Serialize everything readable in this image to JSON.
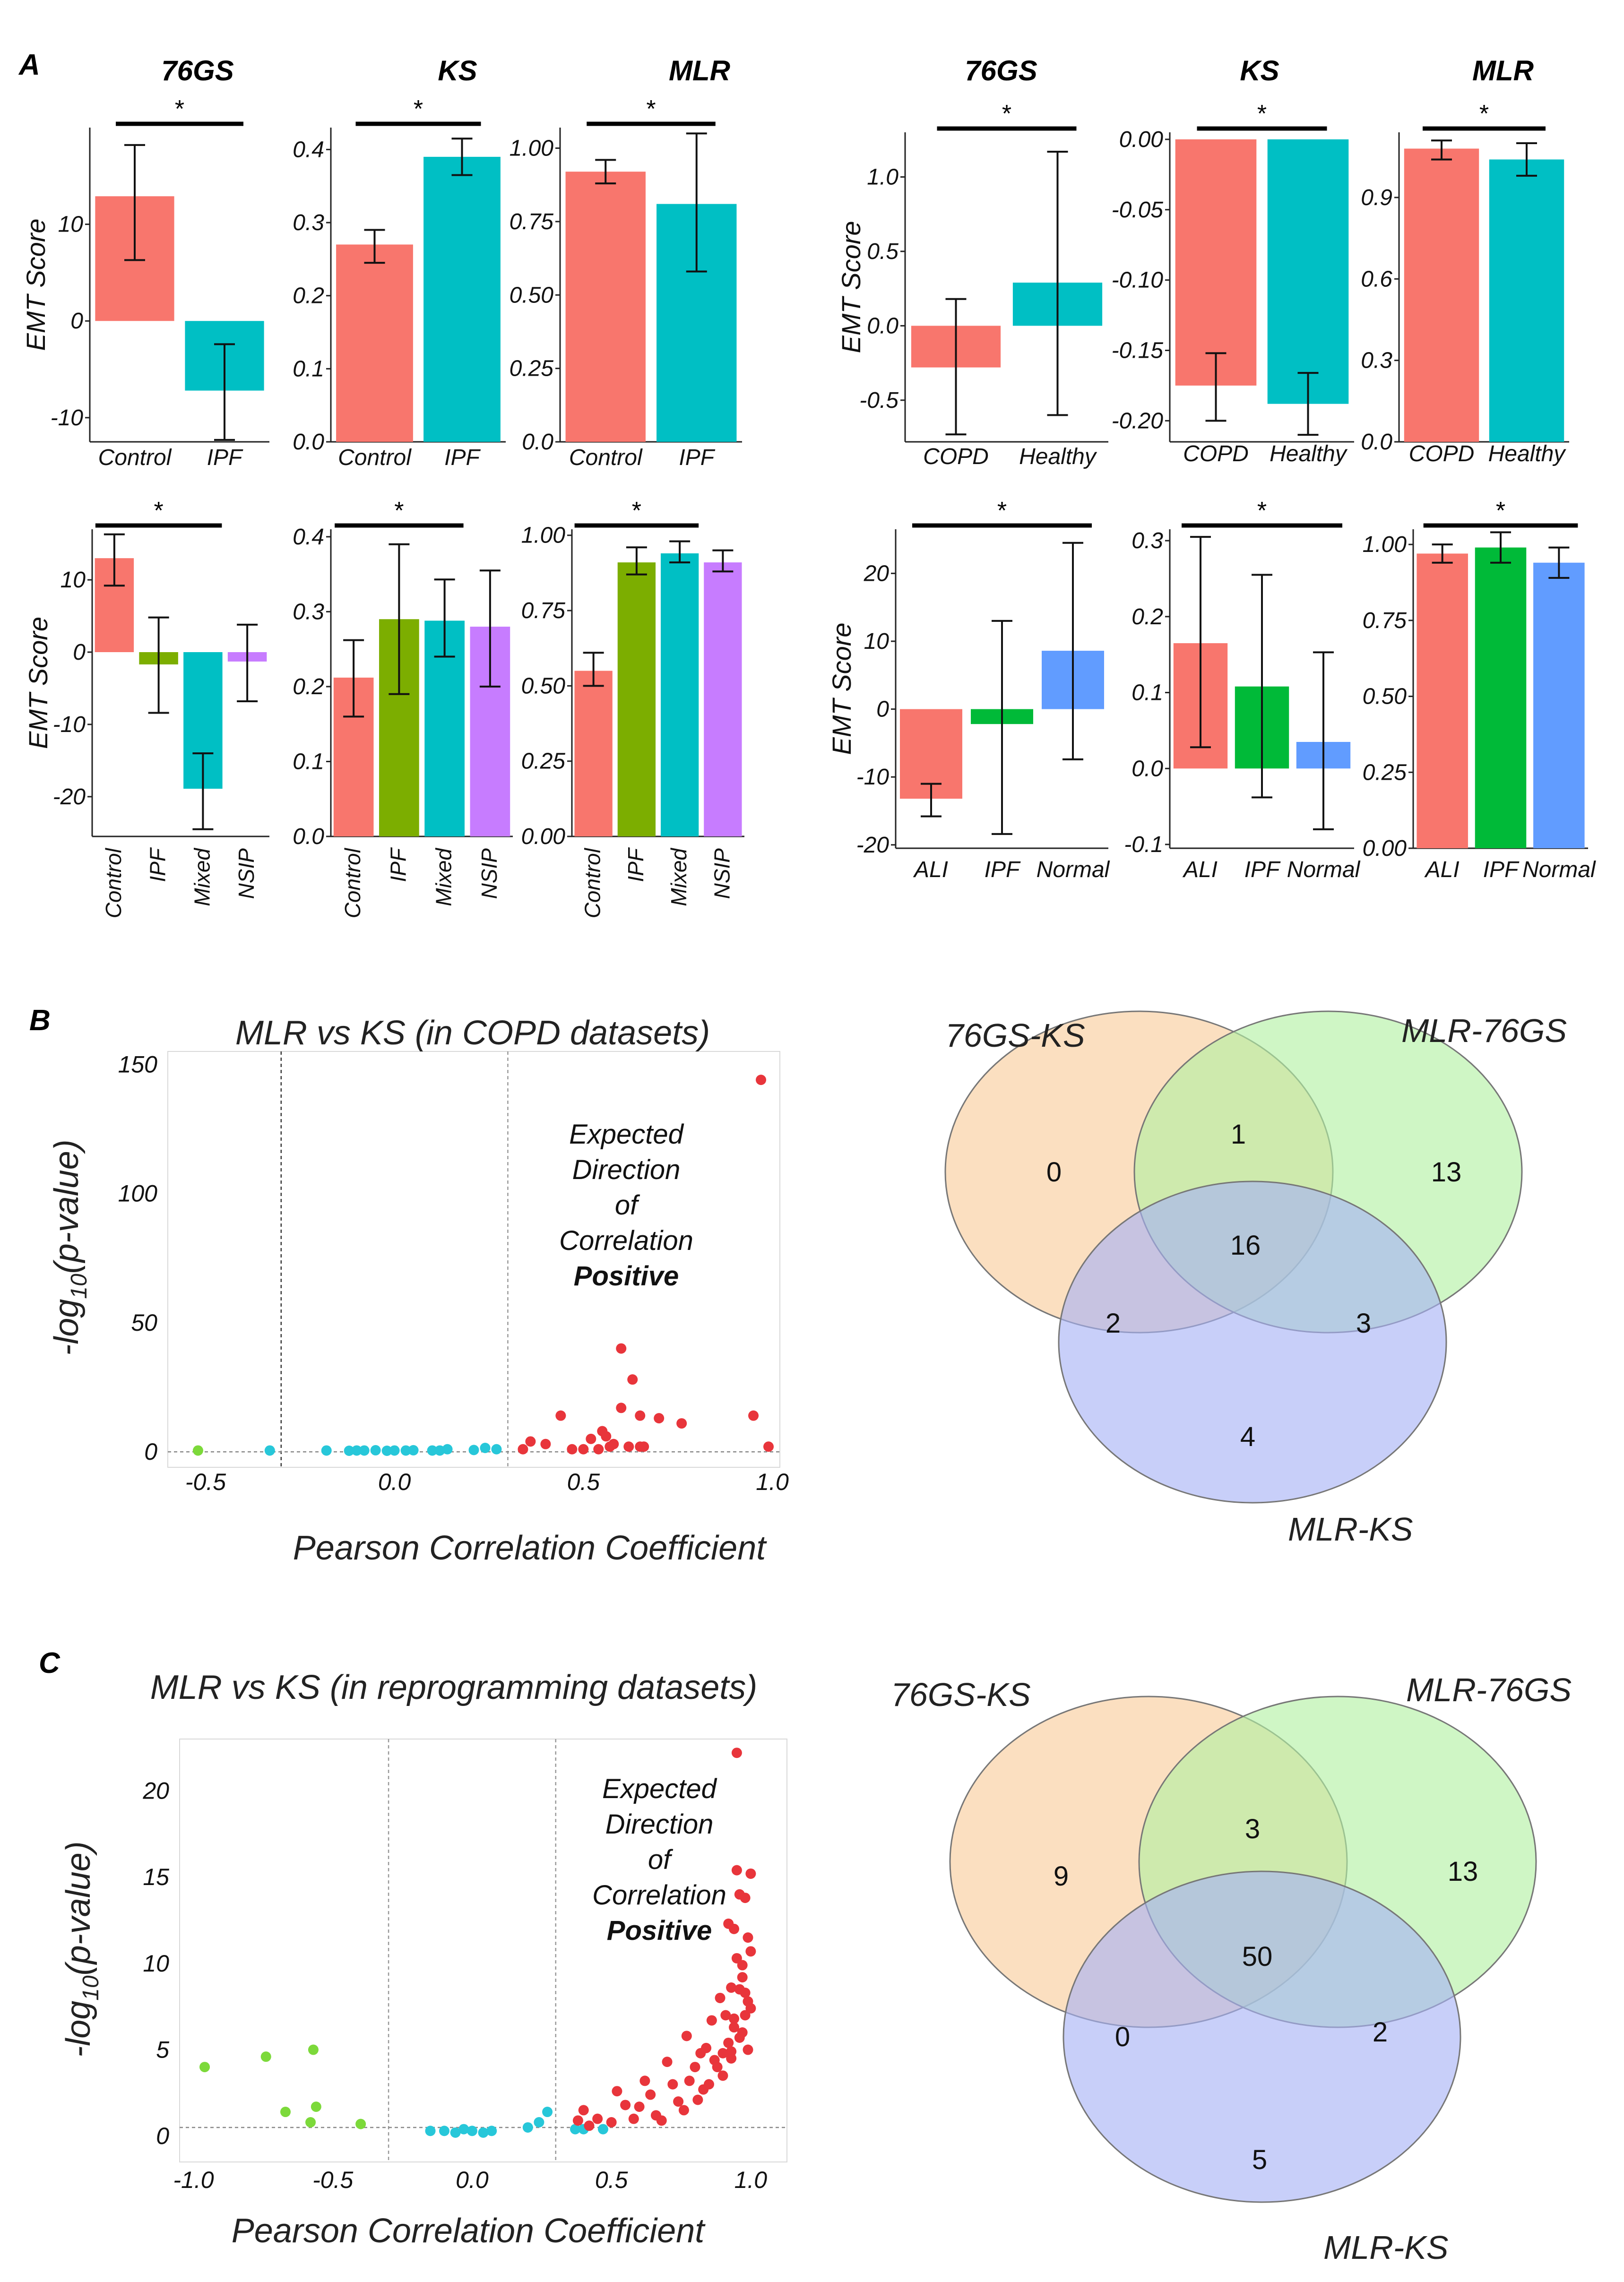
{
  "panel_labels": {
    "a": "A",
    "b": "B",
    "c": "C"
  },
  "chart_data": [
    {
      "id": "a1",
      "type": "bar",
      "title": "76GS",
      "ylabel": "EMT Score",
      "categories": [
        "Control",
        "IPF"
      ],
      "values": [
        12.9,
        -7.2
      ],
      "err_low": [
        6.3,
        -12.3
      ],
      "err_high": [
        18.2,
        -2.4
      ],
      "colors": [
        "#f8766d",
        "#00bfc4"
      ],
      "ylim": [
        -12.5,
        20
      ],
      "yticks": [
        -10,
        0,
        10
      ],
      "ytick_labels": [
        "-10",
        "0",
        "10"
      ],
      "significance": "*",
      "sig_span": [
        0,
        1
      ]
    },
    {
      "id": "a2",
      "type": "bar",
      "title": "KS",
      "ylabel": "",
      "categories": [
        "Control",
        "IPF"
      ],
      "values": [
        0.27,
        0.39
      ],
      "err_low": [
        0.245,
        0.365
      ],
      "err_high": [
        0.29,
        0.415
      ],
      "colors": [
        "#f8766d",
        "#00bfc4"
      ],
      "ylim": [
        0,
        0.43
      ],
      "yticks": [
        0,
        0.1,
        0.2,
        0.3,
        0.4
      ],
      "ytick_labels": [
        "0.0",
        "0.1",
        "0.2",
        "0.3",
        "0.4"
      ],
      "significance": "*",
      "sig_span": [
        0,
        1
      ]
    },
    {
      "id": "a3",
      "type": "bar",
      "title": "MLR",
      "ylabel": "",
      "categories": [
        "Control",
        "IPF"
      ],
      "values": [
        0.92,
        0.81
      ],
      "err_low": [
        0.88,
        0.58
      ],
      "err_high": [
        0.96,
        1.05
      ],
      "colors": [
        "#f8766d",
        "#00bfc4"
      ],
      "ylim": [
        0,
        1.07
      ],
      "yticks": [
        0,
        0.25,
        0.5,
        0.75,
        1.0
      ],
      "ytick_labels": [
        "0.0",
        "0.25",
        "0.50",
        "0.75",
        "1.00"
      ],
      "significance": "*",
      "sig_span": [
        0,
        1
      ]
    },
    {
      "id": "a4",
      "type": "bar",
      "title": "76GS",
      "ylabel": "EMT Score",
      "categories": [
        "COPD",
        "Healthy"
      ],
      "values": [
        -0.28,
        0.29
      ],
      "err_low": [
        -0.73,
        -0.6
      ],
      "err_high": [
        0.18,
        1.17
      ],
      "colors": [
        "#f8766d",
        "#00bfc4"
      ],
      "ylim": [
        -0.78,
        1.3
      ],
      "yticks": [
        -0.5,
        0,
        0.5,
        1.0
      ],
      "ytick_labels": [
        "-0.5",
        "0.0",
        "0.5",
        "1.0"
      ],
      "significance": "*",
      "sig_span": [
        0,
        1
      ]
    },
    {
      "id": "a5",
      "type": "bar",
      "title": "KS",
      "ylabel": "",
      "categories": [
        "COPD",
        "Healthy"
      ],
      "values": [
        -0.175,
        -0.188
      ],
      "err_low": [
        -0.2,
        -0.21
      ],
      "err_high": [
        -0.152,
        -0.166
      ],
      "colors": [
        "#f8766d",
        "#00bfc4"
      ],
      "ylim": [
        -0.215,
        0.005
      ],
      "yticks": [
        -0.2,
        -0.15,
        -0.1,
        -0.05,
        0
      ],
      "ytick_labels": [
        "-0.20",
        "-0.15",
        "-0.10",
        "-0.05",
        "0.00"
      ],
      "significance": "*",
      "sig_span": [
        0,
        1
      ]
    },
    {
      "id": "a6",
      "type": "bar",
      "title": "MLR",
      "ylabel": "",
      "categories": [
        "COPD",
        "Healthy"
      ],
      "values": [
        1.08,
        1.04
      ],
      "err_low": [
        1.04,
        0.98
      ],
      "err_high": [
        1.11,
        1.1
      ],
      "colors": [
        "#f8766d",
        "#00bfc4"
      ],
      "ylim": [
        0,
        1.14
      ],
      "yticks": [
        0,
        0.3,
        0.6,
        0.9
      ],
      "ytick_labels": [
        "0.0",
        "0.3",
        "0.6",
        "0.9"
      ],
      "significance": "*",
      "sig_span": [
        0,
        1
      ]
    },
    {
      "id": "a7",
      "type": "bar",
      "title": "",
      "ylabel": "EMT Score",
      "categories": [
        "Control",
        "IPF",
        "Mixed",
        "NSIP"
      ],
      "values": [
        13.0,
        -1.7,
        -18.9,
        -1.3
      ],
      "err_low": [
        9.2,
        -8.4,
        -24.5,
        -6.8
      ],
      "err_high": [
        16.3,
        4.8,
        -14.0,
        3.8
      ],
      "colors": [
        "#f8766d",
        "#7cae00",
        "#00bfc4",
        "#c77cff"
      ],
      "ylim": [
        -25.5,
        17
      ],
      "yticks": [
        -20,
        -10,
        0,
        10
      ],
      "ytick_labels": [
        "-20",
        "-10",
        "0",
        "10"
      ],
      "significance": "*",
      "sig_span": [
        0,
        2
      ]
    },
    {
      "id": "a8",
      "type": "bar",
      "title": "",
      "ylabel": "",
      "categories": [
        "Control",
        "IPF",
        "Mixed",
        "NSIP"
      ],
      "values": [
        0.212,
        0.29,
        0.288,
        0.28
      ],
      "err_low": [
        0.16,
        0.19,
        0.24,
        0.2
      ],
      "err_high": [
        0.262,
        0.39,
        0.343,
        0.355
      ],
      "colors": [
        "#f8766d",
        "#7cae00",
        "#00bfc4",
        "#c77cff"
      ],
      "ylim": [
        0,
        0.41
      ],
      "yticks": [
        0,
        0.1,
        0.2,
        0.3,
        0.4
      ],
      "ytick_labels": [
        "0.0",
        "0.1",
        "0.2",
        "0.3",
        "0.4"
      ],
      "significance": "*",
      "sig_span": [
        0,
        2
      ]
    },
    {
      "id": "a9",
      "type": "bar",
      "title": "",
      "ylabel": "",
      "categories": [
        "Control",
        "IPF",
        "Mixed",
        "NSIP"
      ],
      "values": [
        0.55,
        0.91,
        0.94,
        0.91
      ],
      "err_low": [
        0.5,
        0.87,
        0.91,
        0.88
      ],
      "err_high": [
        0.61,
        0.96,
        0.98,
        0.95
      ],
      "colors": [
        "#f8766d",
        "#7cae00",
        "#00bfc4",
        "#c77cff"
      ],
      "ylim": [
        0,
        1.02
      ],
      "yticks": [
        0,
        0.25,
        0.5,
        0.75,
        1.0
      ],
      "ytick_labels": [
        "0.00",
        "0.25",
        "0.50",
        "0.75",
        "1.00"
      ],
      "significance": "*",
      "sig_span": [
        0,
        2
      ]
    },
    {
      "id": "a10",
      "type": "bar",
      "title": "",
      "ylabel": "EMT Score",
      "categories": [
        "ALI",
        "IPF",
        "Normal"
      ],
      "values": [
        -13.2,
        -2.2,
        8.6
      ],
      "err_low": [
        -15.8,
        -18.4,
        -7.4
      ],
      "err_high": [
        -11.0,
        13.0,
        24.5
      ],
      "colors": [
        "#f8766d",
        "#00ba38",
        "#619cff"
      ],
      "ylim": [
        -20.5,
        26.5
      ],
      "yticks": [
        -20,
        -10,
        0,
        10,
        20
      ],
      "ytick_labels": [
        "-20",
        "-10",
        "0",
        "10",
        "20"
      ],
      "significance": "*",
      "sig_span": [
        0,
        2
      ]
    },
    {
      "id": "a11",
      "type": "bar",
      "title": "",
      "ylabel": "",
      "categories": [
        "ALI",
        "IPF",
        "Normal"
      ],
      "values": [
        0.165,
        0.108,
        0.035
      ],
      "err_low": [
        0.028,
        -0.038,
        -0.08
      ],
      "err_high": [
        0.305,
        0.255,
        0.153
      ],
      "colors": [
        "#f8766d",
        "#00ba38",
        "#619cff"
      ],
      "ylim": [
        -0.105,
        0.315
      ],
      "yticks": [
        -0.1,
        0,
        0.1,
        0.2,
        0.3
      ],
      "ytick_labels": [
        "-0.1",
        "0.0",
        "0.1",
        "0.2",
        "0.3"
      ],
      "significance": "*",
      "sig_span": [
        0,
        2
      ]
    },
    {
      "id": "a12",
      "type": "bar",
      "title": "",
      "ylabel": "",
      "categories": [
        "ALI",
        "IPF",
        "Normal"
      ],
      "values": [
        0.97,
        0.99,
        0.94
      ],
      "err_low": [
        0.94,
        0.94,
        0.89
      ],
      "err_high": [
        1.0,
        1.04,
        0.99
      ],
      "colors": [
        "#f8766d",
        "#00ba38",
        "#619cff"
      ],
      "ylim": [
        0,
        1.05
      ],
      "yticks": [
        0,
        0.25,
        0.5,
        0.75,
        1.0
      ],
      "ytick_labels": [
        "0.00",
        "0.25",
        "0.50",
        "0.75",
        "1.00"
      ],
      "significance": "*",
      "sig_span": [
        0,
        2
      ]
    },
    {
      "id": "b_scatter",
      "type": "scatter",
      "title": "MLR vs KS (in COPD datasets)",
      "xlabel": "Pearson Correlation Coefficient",
      "ylabel_main": "-log",
      "ylabel_sub": "10",
      "ylabel_rest": "(p-value)",
      "xlim": [
        -0.6,
        1.02
      ],
      "ylim": [
        -6,
        155
      ],
      "xticks": [
        -0.5,
        0,
        0.5,
        1.0
      ],
      "xtick_labels": [
        "-0.5",
        "0.0",
        "0.5",
        "1.0"
      ],
      "yticks": [
        0,
        50,
        100,
        150
      ],
      "ytick_labels": [
        "0",
        "50",
        "100",
        "150"
      ],
      "threshold_lines": [
        -0.3,
        0.3
      ],
      "annotation": [
        "Expected",
        "Direction",
        "of",
        "Correlation"
      ],
      "annotation_bold": "Positive",
      "series": [
        {
          "name": "negative",
          "color": "#7cd93a",
          "x": [
            -0.52
          ],
          "y": [
            0.5
          ]
        },
        {
          "name": "non-significant",
          "color": "#27c7d9",
          "x": [
            -0.33,
            -0.18,
            -0.12,
            -0.1,
            -0.08,
            -0.05,
            -0.02,
            0.0,
            0.03,
            0.05,
            0.1,
            0.12,
            0.14,
            0.21,
            0.24,
            0.27
          ],
          "y": [
            0.5,
            0.5,
            0.4,
            0.5,
            0.5,
            0.6,
            0.4,
            0.5,
            0.5,
            0.6,
            0.5,
            0.5,
            1.0,
            0.7,
            1.5,
            1.0
          ]
        },
        {
          "name": "positive",
          "color": "#e8353b",
          "x": [
            0.34,
            0.36,
            0.4,
            0.44,
            0.47,
            0.5,
            0.52,
            0.54,
            0.55,
            0.56,
            0.57,
            0.58,
            0.6,
            0.6,
            0.62,
            0.63,
            0.65,
            0.65,
            0.66,
            0.7,
            0.76,
            0.95,
            0.97,
            0.99
          ],
          "y": [
            1,
            4,
            3,
            14,
            1,
            1,
            5,
            1,
            8,
            6,
            2,
            3,
            40,
            17,
            2,
            28,
            14,
            2,
            2,
            13,
            11,
            14,
            144,
            2
          ]
        }
      ]
    },
    {
      "id": "c_scatter",
      "type": "scatter",
      "title": "MLR vs KS (in reprogramming datasets)",
      "xlabel": "Pearson Correlation Coefficient",
      "ylabel_main": "-log",
      "ylabel_sub": "10",
      "ylabel_rest": "(p-value)",
      "xlim": [
        -1.05,
        1.13
      ],
      "ylim": [
        -1.5,
        23
      ],
      "xticks": [
        -1.0,
        -0.5,
        0,
        0.5,
        1.0
      ],
      "xtick_labels": [
        "-1.0",
        "-0.5",
        "0.0",
        "0.5",
        "1.0"
      ],
      "yticks": [
        0,
        5,
        10,
        15,
        20
      ],
      "ytick_labels": [
        "0",
        "5",
        "10",
        "15",
        "20"
      ],
      "threshold_lines": [
        -0.3,
        0.3
      ],
      "hline": 0.5,
      "annotation": [
        "Expected",
        "Direction",
        "of",
        "Correlation"
      ],
      "annotation_bold": "Positive",
      "series": [
        {
          "name": "negative",
          "color": "#7cd93a",
          "x": [
            -0.96,
            -0.74,
            -0.67,
            -0.57,
            -0.56,
            -0.58,
            -0.4
          ],
          "y": [
            4.0,
            4.6,
            1.4,
            5.0,
            1.7,
            0.8,
            0.7
          ]
        },
        {
          "name": "non-significant",
          "color": "#27c7d9",
          "x": [
            -0.15,
            -0.1,
            -0.06,
            -0.03,
            0.0,
            0.04,
            0.07,
            0.2,
            0.24,
            0.27,
            0.37,
            0.4,
            0.47
          ],
          "y": [
            0.3,
            0.3,
            0.2,
            0.4,
            0.3,
            0.2,
            0.3,
            0.5,
            0.8,
            1.4,
            0.4,
            0.4,
            0.4
          ]
        },
        {
          "name": "positive",
          "color": "#e8353b",
          "x": [
            0.38,
            0.4,
            0.42,
            0.45,
            0.5,
            0.52,
            0.55,
            0.58,
            0.6,
            0.62,
            0.64,
            0.66,
            0.68,
            0.7,
            0.72,
            0.74,
            0.76,
            0.77,
            0.78,
            0.8,
            0.81,
            0.82,
            0.83,
            0.84,
            0.85,
            0.86,
            0.87,
            0.88,
            0.89,
            0.9,
            0.9,
            0.91,
            0.92,
            0.92,
            0.93,
            0.93,
            0.94,
            0.94,
            0.95,
            0.95,
            0.96,
            0.96,
            0.97,
            0.97,
            0.98,
            0.98,
            0.99,
            0.99,
            0.99,
            1.0,
            1.0,
            1.0,
            0.95,
            0.97,
            0.93,
            0.96,
            0.98,
            0.94
          ],
          "y": [
            0.9,
            1.5,
            0.6,
            1.0,
            0.8,
            2.6,
            1.8,
            1.0,
            1.7,
            3.2,
            2.4,
            1.2,
            0.9,
            4.3,
            3.0,
            2.0,
            1.5,
            5.8,
            3.2,
            4.0,
            2.1,
            4.8,
            2.7,
            5.1,
            3.0,
            6.7,
            4.4,
            4.0,
            8.0,
            4.8,
            3.5,
            7.0,
            12.3,
            5.4,
            4.5,
            8.6,
            12.0,
            6.3,
            15.4,
            10.3,
            5.7,
            8.5,
            9.2,
            6.0,
            13.8,
            7.0,
            11.5,
            7.8,
            5.0,
            15.2,
            10.7,
            7.4,
            22.2,
            9.9,
            4.9,
            14.0,
            8.3,
            6.8
          ]
        }
      ]
    },
    {
      "id": "b_venn",
      "type": "venn",
      "set_labels": [
        "76GS-KS",
        "MLR-76GS",
        "MLR-KS"
      ],
      "colors": [
        "#f9cc9a",
        "#b1f0a1",
        "#a6b1f5"
      ],
      "regions": {
        "a_only": 0,
        "b_only": 13,
        "c_only": 4,
        "ab": 1,
        "ac": 2,
        "bc": 3,
        "abc": 16
      }
    },
    {
      "id": "c_venn",
      "type": "venn",
      "set_labels": [
        "76GS-KS",
        "MLR-76GS",
        "MLR-KS"
      ],
      "colors": [
        "#f9cc9a",
        "#b1f0a1",
        "#a6b1f5"
      ],
      "regions": {
        "a_only": 9,
        "b_only": 13,
        "c_only": 5,
        "ab": 3,
        "ac": 0,
        "bc": 2,
        "abc": 50
      }
    }
  ]
}
